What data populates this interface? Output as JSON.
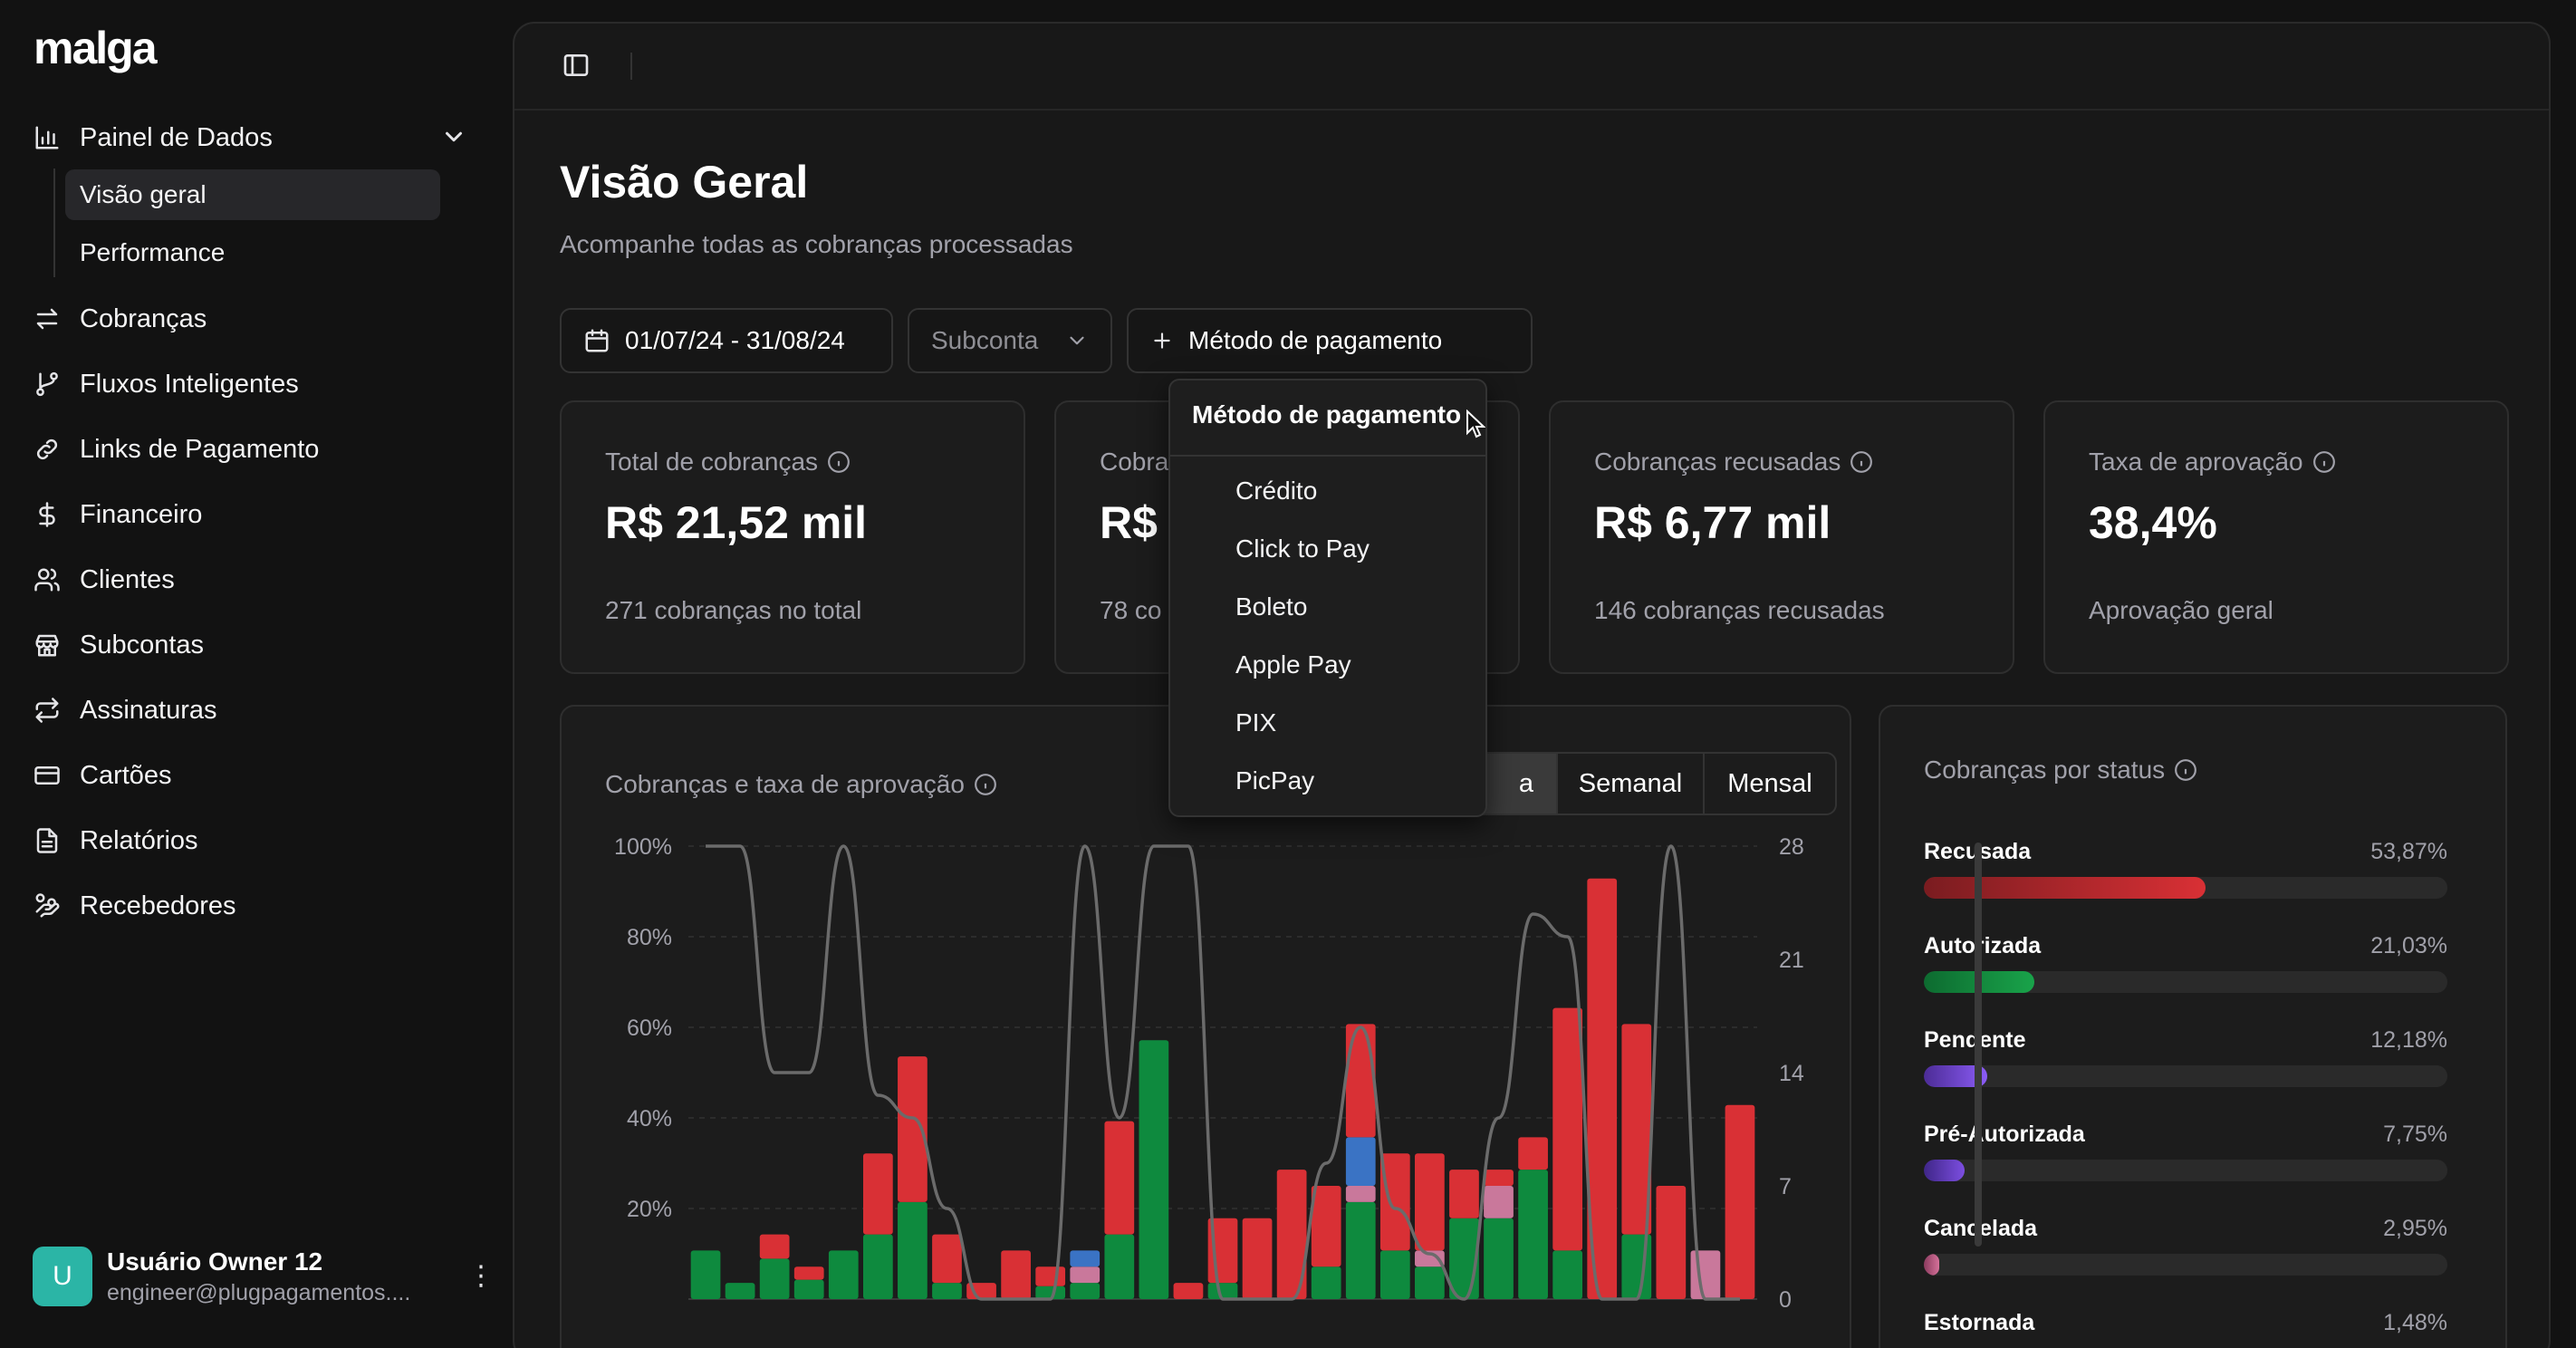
{
  "app": {
    "logo": "malga"
  },
  "sidebar": {
    "items": [
      {
        "label": "Painel de Dados",
        "icon": "bar-chart-icon"
      },
      {
        "label": "Cobranças",
        "icon": "arrows-swap-icon"
      },
      {
        "label": "Fluxos Inteligentes",
        "icon": "git-branch-icon"
      },
      {
        "label": "Links de Pagamento",
        "icon": "link-icon"
      },
      {
        "label": "Financeiro",
        "icon": "dollar-icon"
      },
      {
        "label": "Clientes",
        "icon": "users-icon"
      },
      {
        "label": "Subcontas",
        "icon": "store-icon"
      },
      {
        "label": "Assinaturas",
        "icon": "repeat-icon"
      },
      {
        "label": "Cartões",
        "icon": "credit-card-icon"
      },
      {
        "label": "Relatórios",
        "icon": "file-text-icon"
      },
      {
        "label": "Recebedores",
        "icon": "hand-coins-icon"
      }
    ],
    "sub_items": [
      {
        "label": "Visão geral",
        "active": true
      },
      {
        "label": "Performance",
        "active": false
      }
    ],
    "user": {
      "initial": "U",
      "name": "Usuário Owner 12",
      "email": "engineer@plugpagamentos...."
    }
  },
  "header": {
    "title": "Visão Geral",
    "subtitle": "Acompanhe todas as cobranças processadas"
  },
  "filters": {
    "date_range": "01/07/24 - 31/08/24",
    "subaccount": "Subconta",
    "payment_method": "Método de pagamento"
  },
  "cards": [
    {
      "label": "Total de cobranças",
      "value": "R$ 21,52 mil",
      "foot": "271 cobranças no total"
    },
    {
      "label": "Cobra",
      "value": "R$",
      "foot": "78 co"
    },
    {
      "label": "Cobranças recusadas",
      "value": "R$ 6,77 mil",
      "foot": "146 cobranças recusadas"
    },
    {
      "label": "Taxa de aprovação",
      "value": "38,4%",
      "foot": "Aprovação geral"
    }
  ],
  "chart_panel": {
    "title": "Cobranças e taxa de aprovação",
    "segments": [
      "a",
      "Semanal",
      "Mensal"
    ]
  },
  "chart_data": {
    "type": "bar",
    "left_axis": {
      "ticks": [
        "100%",
        "80%",
        "60%",
        "40%",
        "20%"
      ],
      "range": [
        0,
        100
      ]
    },
    "right_axis": {
      "ticks": [
        "28",
        "21",
        "14",
        "7",
        "0"
      ],
      "range": [
        0,
        28
      ]
    },
    "series_colors": {
      "autorizada": "#0e8a3e",
      "recusada": "#d93035",
      "pre_autorizada": "#3a73c4",
      "outro": "#c9789b",
      "taxa": "#6b6b6b"
    },
    "bars": [
      {
        "autorizada": 3,
        "recusada": 0,
        "outro": 0,
        "pre": 0
      },
      {
        "autorizada": 1,
        "recusada": 0,
        "outro": 0,
        "pre": 0
      },
      {
        "autorizada": 2.5,
        "recusada": 1.5,
        "outro": 0,
        "pre": 0
      },
      {
        "autorizada": 1.2,
        "recusada": 0.8,
        "outro": 0,
        "pre": 0
      },
      {
        "autorizada": 3,
        "recusada": 0,
        "outro": 0,
        "pre": 0
      },
      {
        "autorizada": 4,
        "recusada": 5,
        "outro": 0,
        "pre": 0
      },
      {
        "autorizada": 6,
        "recusada": 9,
        "outro": 0,
        "pre": 0
      },
      {
        "autorizada": 1,
        "recusada": 3,
        "outro": 0,
        "pre": 0
      },
      {
        "autorizada": 0,
        "recusada": 1,
        "outro": 0,
        "pre": 0
      },
      {
        "autorizada": 0,
        "recusada": 3,
        "outro": 0,
        "pre": 0
      },
      {
        "autorizada": 0.8,
        "recusada": 1.2,
        "outro": 0,
        "pre": 0
      },
      {
        "autorizada": 1,
        "recusada": 0,
        "outro": 1,
        "pre": 1
      },
      {
        "autorizada": 4,
        "recusada": 7,
        "outro": 0,
        "pre": 0
      },
      {
        "autorizada": 16,
        "recusada": 0,
        "outro": 0,
        "pre": 0
      },
      {
        "autorizada": 0,
        "recusada": 1,
        "outro": 0,
        "pre": 0
      },
      {
        "autorizada": 1,
        "recusada": 4,
        "outro": 0,
        "pre": 0
      },
      {
        "autorizada": 0,
        "recusada": 5,
        "outro": 0,
        "pre": 0
      },
      {
        "autorizada": 0,
        "recusada": 8,
        "outro": 0,
        "pre": 0
      },
      {
        "autorizada": 2,
        "recusada": 5,
        "outro": 0,
        "pre": 0
      },
      {
        "autorizada": 6,
        "recusada": 7,
        "outro": 1,
        "pre": 3
      },
      {
        "autorizada": 3,
        "recusada": 6,
        "outro": 0,
        "pre": 0
      },
      {
        "autorizada": 2,
        "recusada": 6,
        "outro": 1,
        "pre": 0
      },
      {
        "autorizada": 5,
        "recusada": 3,
        "outro": 0,
        "pre": 0
      },
      {
        "autorizada": 5,
        "recusada": 1,
        "outro": 2,
        "pre": 0
      },
      {
        "autorizada": 8,
        "recusada": 2,
        "outro": 0,
        "pre": 0
      },
      {
        "autorizada": 3,
        "recusada": 15,
        "outro": 0,
        "pre": 0
      },
      {
        "autorizada": 0,
        "recusada": 26,
        "outro": 0,
        "pre": 0
      },
      {
        "autorizada": 4,
        "recusada": 13,
        "outro": 0,
        "pre": 0
      },
      {
        "autorizada": 0,
        "recusada": 7,
        "outro": 0,
        "pre": 0
      },
      {
        "autorizada": 0,
        "recusada": 0,
        "outro": 3,
        "pre": 0
      },
      {
        "autorizada": 0,
        "recusada": 12,
        "outro": 0,
        "pre": 0
      }
    ],
    "approval_rate": [
      100,
      100,
      50,
      50,
      100,
      45,
      40,
      20,
      0,
      0,
      0,
      100,
      40,
      100,
      100,
      0,
      0,
      0,
      30,
      60,
      20,
      10,
      0,
      40,
      85,
      80,
      0,
      0,
      100,
      0,
      0
    ]
  },
  "status_panel": {
    "title": "Cobranças por status",
    "items": [
      {
        "name": "Recusada",
        "pct": "53,87%",
        "value": 53.87,
        "color": "#d93035",
        "color2": "#7a1c20"
      },
      {
        "name": "Autorizada",
        "pct": "21,03%",
        "value": 21.03,
        "color": "#19a34a",
        "color2": "#0d6b30"
      },
      {
        "name": "Pendente",
        "pct": "12,18%",
        "value": 12.18,
        "color": "#8b5cf6",
        "color2": "#4c2c96"
      },
      {
        "name": "Pré-Autorizada",
        "pct": "7,75%",
        "value": 7.75,
        "color": "#7c4ee0",
        "color2": "#3f2688"
      },
      {
        "name": "Cancelada",
        "pct": "2,95%",
        "value": 2.95,
        "color": "#d6719a",
        "color2": "#8a3b5e"
      },
      {
        "name": "Estornada",
        "pct": "1,48%",
        "value": 1.48,
        "color": "#d6719a",
        "color2": "#8a3b5e"
      }
    ]
  },
  "dropdown": {
    "title": "Método de pagamento",
    "options": [
      "Crédito",
      "Click to Pay",
      "Boleto",
      "Apple Pay",
      "PIX",
      "PicPay"
    ]
  }
}
